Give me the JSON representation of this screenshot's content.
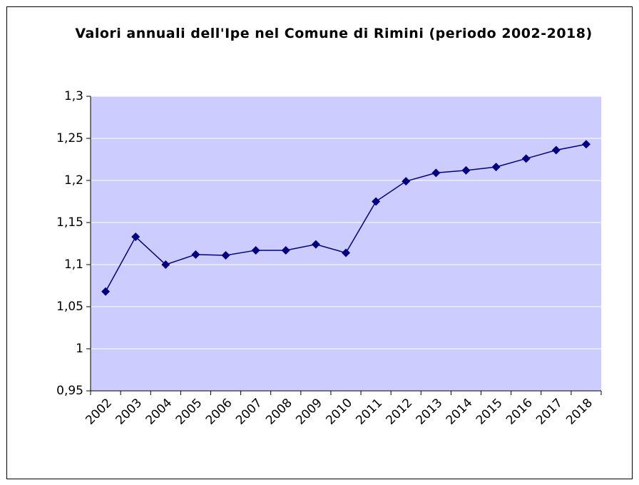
{
  "chart_data": {
    "type": "line",
    "title": "Valori annuali dell'Ipe nel Comune di Rimini (periodo 2002-2018)",
    "categories": [
      "2002",
      "2003",
      "2004",
      "2005",
      "2006",
      "2007",
      "2008",
      "2009",
      "2010",
      "2011",
      "2012",
      "2013",
      "2014",
      "2015",
      "2016",
      "2017",
      "2018"
    ],
    "series": [
      {
        "color": "#000080",
        "values": [
          1.068,
          1.133,
          1.1,
          1.112,
          1.111,
          1.117,
          1.117,
          1.124,
          1.114,
          1.175,
          1.199,
          1.209,
          1.212,
          1.216,
          1.226,
          1.236,
          1.243
        ]
      }
    ],
    "ylim": [
      0.95,
      1.3
    ],
    "yticks": [
      {
        "value": 0.95,
        "label": "0,95"
      },
      1,
      {
        "value": 1.05,
        "label": "1,05"
      },
      {
        "value": 1.1,
        "label": "1,1"
      },
      {
        "value": 1.15,
        "label": "1,15"
      },
      {
        "value": 1.2,
        "label": "1,2"
      },
      {
        "value": 1.25,
        "label": "1,25"
      },
      {
        "value": 1.3,
        "label": "1,3"
      }
    ],
    "grid": true,
    "plot_background": "#ccccff"
  }
}
